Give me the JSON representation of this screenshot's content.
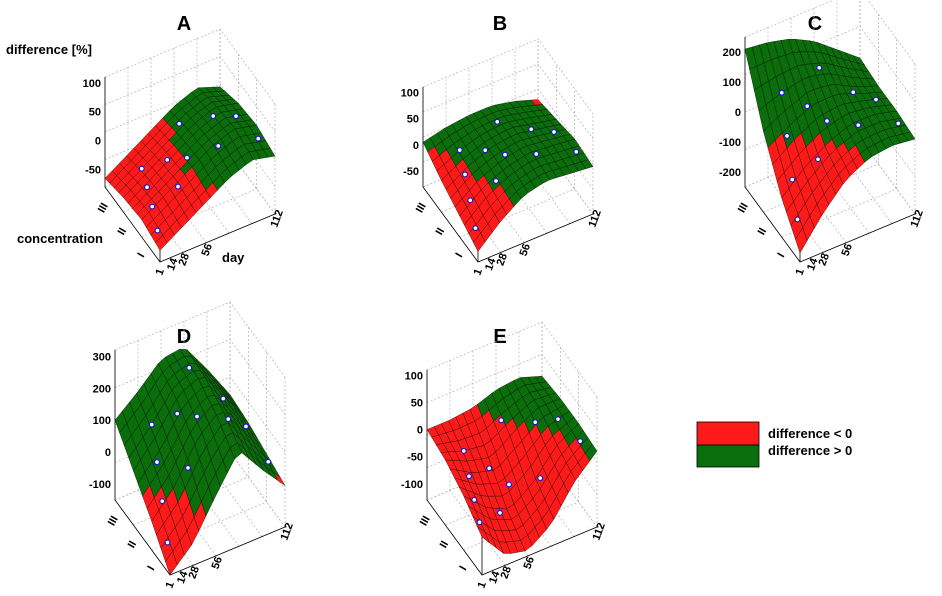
{
  "chart_data": [
    {
      "type": "surface",
      "panel": "A",
      "zlabel": "difference [%]",
      "ylabel": "concentration",
      "xlabel": "day",
      "z_ticks": [
        "100",
        "50",
        "0",
        "-50"
      ],
      "zlim": [
        -80,
        110
      ],
      "x_ticks": [
        "1",
        "14",
        "28",
        "56",
        "112"
      ],
      "y_ticks": [
        "I",
        "II",
        "III"
      ],
      "surface_grid": [
        [
          -60,
          -35,
          -10,
          15,
          30,
          20
        ],
        [
          -50,
          -25,
          0,
          25,
          40,
          30
        ],
        [
          -55,
          -30,
          -5,
          20,
          35,
          25
        ],
        [
          -65,
          -40,
          -15,
          10,
          25,
          10
        ]
      ]
    },
    {
      "type": "surface",
      "panel": "B",
      "z_ticks": [
        "100",
        "50",
        "0",
        "-50"
      ],
      "zlim": [
        -80,
        110
      ],
      "x_ticks": [
        "1",
        "14",
        "28",
        "56",
        "112"
      ],
      "y_ticks": [
        "I",
        "II",
        "III"
      ],
      "surface_grid": [
        [
          -60,
          -20,
          10,
          20,
          15,
          10
        ],
        [
          -40,
          -5,
          15,
          25,
          20,
          15
        ],
        [
          -20,
          5,
          20,
          25,
          15,
          5
        ],
        [
          5,
          15,
          20,
          20,
          10,
          -5
        ]
      ]
    },
    {
      "type": "surface",
      "panel": "C",
      "z_ticks": [
        "200",
        "100",
        "0",
        "-100",
        "-200"
      ],
      "zlim": [
        -250,
        250
      ],
      "x_ticks": [
        "1",
        "14",
        "28",
        "56",
        "112"
      ],
      "y_ticks": [
        "I",
        "II",
        "III"
      ],
      "surface_grid": [
        [
          -220,
          -120,
          -40,
          0,
          10,
          0
        ],
        [
          -120,
          -50,
          0,
          30,
          30,
          10
        ],
        [
          20,
          60,
          90,
          80,
          40,
          10
        ],
        [
          210,
          200,
          180,
          140,
          80,
          20
        ]
      ]
    },
    {
      "type": "surface",
      "panel": "D",
      "z_ticks": [
        "300",
        "200",
        "100",
        "0",
        "-100"
      ],
      "zlim": [
        -150,
        320
      ],
      "x_ticks": [
        "1",
        "14",
        "28",
        "56",
        "112"
      ],
      "y_ticks": [
        "I",
        "II",
        "III"
      ],
      "surface_grid": [
        [
          -150,
          -80,
          40,
          150,
          60,
          -20
        ],
        [
          -60,
          20,
          140,
          200,
          100,
          0
        ],
        [
          20,
          100,
          200,
          230,
          130,
          20
        ],
        [
          100,
          160,
          230,
          240,
          140,
          30
        ]
      ]
    },
    {
      "type": "surface",
      "panel": "E",
      "z_ticks": [
        "100",
        "50",
        "0",
        "-50",
        "-100"
      ],
      "zlim": [
        -130,
        110
      ],
      "x_ticks": [
        "1",
        "14",
        "28",
        "56",
        "112"
      ],
      "y_ticks": [
        "I",
        "II",
        "III"
      ],
      "surface_grid": [
        [
          -60,
          -110,
          -120,
          -90,
          -30,
          10
        ],
        [
          -30,
          -70,
          -90,
          -60,
          -10,
          15
        ],
        [
          -10,
          -30,
          -40,
          -10,
          15,
          15
        ],
        [
          0,
          0,
          5,
          20,
          25,
          10
        ]
      ]
    }
  ],
  "legend": {
    "items": [
      {
        "label": "difference < 0",
        "color": "#ff1a1a"
      },
      {
        "label": "difference > 0",
        "color": "#0a6e0a"
      }
    ]
  },
  "colors": {
    "negative": "#ff1a1a",
    "positive": "#0a6e0a",
    "points": "#1a1ad0"
  }
}
